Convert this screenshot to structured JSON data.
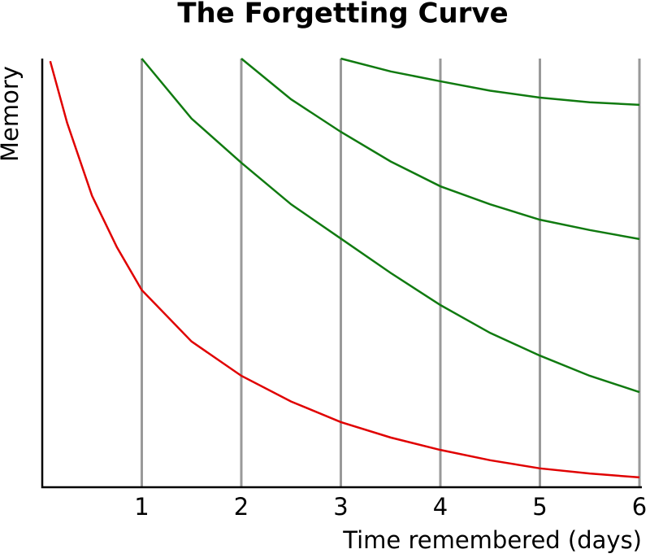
{
  "chart_data": {
    "type": "line",
    "title": "The Forgetting Curve",
    "x_label": "Time remembered (days)",
    "y_label": "Memory",
    "x": [
      0.08,
      0.25,
      0.5,
      0.75,
      1,
      1.5,
      2,
      2.5,
      3,
      3.5,
      4,
      4.5,
      5,
      5.5,
      6
    ],
    "series": [
      {
        "color": "#e00000",
        "values": [
          99.4,
          85,
          68,
          56,
          46,
          34,
          26,
          20,
          15.2,
          11.6,
          8.7,
          6.3,
          4.4,
          3.2,
          2.3
        ]
      },
      {
        "color": "#107a10",
        "values": [
          null,
          null,
          null,
          null,
          100,
          86,
          75.7,
          66,
          58,
          50,
          42.5,
          36,
          30.7,
          26,
          22.2
        ]
      },
      {
        "color": "#107a10",
        "values": [
          null,
          null,
          null,
          null,
          null,
          null,
          100,
          90.5,
          82.9,
          76,
          70.2,
          66,
          62.4,
          60,
          57.9
        ]
      },
      {
        "color": "#107a10",
        "values": [
          null,
          null,
          null,
          null,
          null,
          null,
          null,
          null,
          100,
          97,
          94.7,
          92.5,
          90.9,
          89.8,
          89.2
        ]
      }
    ],
    "xlim": [
      0,
      6
    ],
    "xticks": [
      1,
      2,
      3,
      4,
      5,
      6
    ],
    "ylim": [
      0,
      100
    ],
    "grid": true,
    "grid_color": "#999999"
  }
}
